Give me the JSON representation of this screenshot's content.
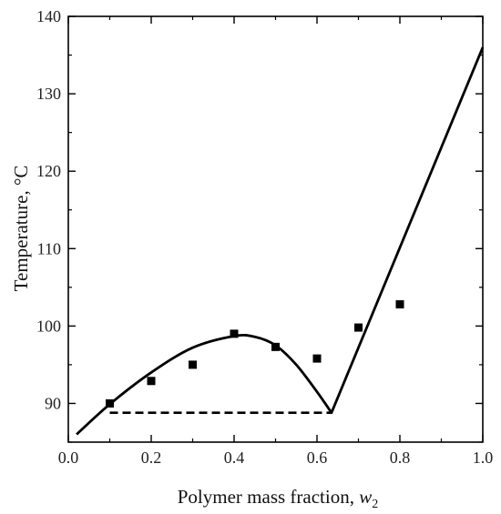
{
  "chart_data": {
    "type": "scatter",
    "title": "",
    "xlabel": "Polymer mass fraction, ",
    "xlabel_symbol": "w",
    "xlabel_subscript": "2",
    "ylabel": "Temperature, °C",
    "xlim": [
      0.0,
      1.0
    ],
    "ylim": [
      85,
      140
    ],
    "x_major_ticks": [
      0.0,
      0.2,
      0.4,
      0.6,
      0.8,
      1.0
    ],
    "x_tick_labels": [
      "0.0",
      "0.2",
      "0.4",
      "0.6",
      "0.8",
      "1.0"
    ],
    "y_major_ticks": [
      90,
      100,
      110,
      120,
      130,
      140
    ],
    "y_tick_labels": [
      "90",
      "100",
      "110",
      "120",
      "130",
      "140"
    ],
    "grid": false,
    "legend": "none",
    "colors": {
      "line": "#000000",
      "points": "#000000",
      "axes": "#000000"
    },
    "series": [
      {
        "kind": "points",
        "marker": "square",
        "x": [
          0.1,
          0.2,
          0.3,
          0.4,
          0.5,
          0.6,
          0.7,
          0.8
        ],
        "y": [
          90.0,
          92.9,
          95.0,
          99.0,
          97.3,
          95.8,
          99.8,
          102.8
        ]
      },
      {
        "kind": "solid-line",
        "x": [
          0.02,
          0.1,
          0.2,
          0.3,
          0.4,
          0.45,
          0.5,
          0.55,
          0.6,
          0.635,
          1.0
        ],
        "y": [
          86.0,
          89.9,
          94.0,
          97.2,
          98.7,
          98.6,
          97.5,
          95.0,
          91.5,
          88.8,
          136.0
        ]
      },
      {
        "kind": "dashed-line",
        "x": [
          0.1,
          0.635
        ],
        "y": [
          88.8,
          88.8
        ]
      }
    ]
  }
}
